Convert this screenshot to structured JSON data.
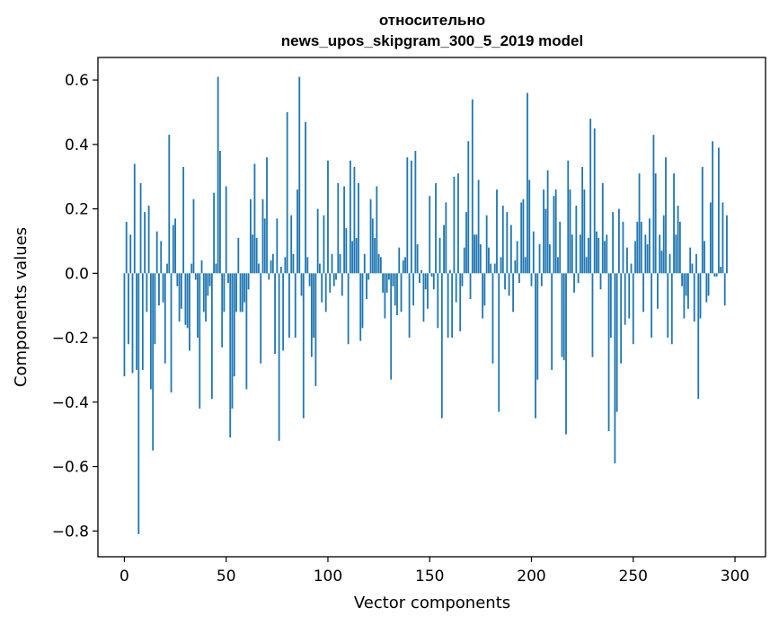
{
  "chart_data": {
    "type": "bar",
    "title": "относительно\nnews_upos_skipgram_300_5_2019 model",
    "title_lines": [
      "относительно",
      "news_upos_skipgram_300_5_2019 model"
    ],
    "xlabel": "Vector components",
    "ylabel": "Components values",
    "xlim": [
      -13,
      315
    ],
    "ylim": [
      -0.88,
      0.67
    ],
    "x_ticks": [
      0,
      50,
      100,
      150,
      200,
      250,
      300
    ],
    "x_tick_labels": [
      "0",
      "50",
      "100",
      "150",
      "200",
      "250",
      "300"
    ],
    "y_ticks": [
      -0.8,
      -0.6,
      -0.4,
      -0.2,
      0.0,
      0.2,
      0.4,
      0.6
    ],
    "y_tick_labels": [
      "−0.8",
      "−0.6",
      "−0.4",
      "−0.2",
      "0.0",
      "0.2",
      "0.4",
      "0.6"
    ],
    "grid": false,
    "bar_color": "#1f77b4",
    "values": [
      -0.32,
      0.16,
      -0.22,
      0.12,
      -0.31,
      0.34,
      -0.3,
      -0.81,
      0.28,
      -0.3,
      0.19,
      -0.12,
      0.21,
      -0.36,
      -0.55,
      -0.22,
      0.13,
      -0.1,
      0.1,
      -0.09,
      -0.28,
      0.03,
      0.43,
      -0.37,
      0.15,
      0.17,
      -0.04,
      -0.15,
      -0.11,
      0.33,
      -0.16,
      -0.17,
      -0.24,
      0.03,
      0.23,
      -0.02,
      -0.2,
      -0.42,
      0.04,
      -0.12,
      -0.15,
      -0.07,
      -0.04,
      -0.39,
      0.25,
      0.03,
      0.61,
      0.38,
      -0.23,
      -0.12,
      0.27,
      -0.03,
      -0.51,
      -0.42,
      -0.32,
      -0.12,
      0.11,
      -0.12,
      -0.12,
      -0.09,
      -0.36,
      -0.05,
      0.23,
      0.12,
      0.34,
      0.11,
      0.03,
      -0.28,
      0.23,
      0.17,
      0.36,
      -0.02,
      0.04,
      0.06,
      -0.25,
      0.17,
      -0.52,
      0.02,
      -0.24,
      0.05,
      0.5,
      -0.2,
      0.18,
      0.06,
      -0.2,
      0.26,
      0.61,
      -0.07,
      -0.45,
      0.47,
      0.05,
      -0.04,
      -0.26,
      -0.2,
      -0.35,
      0.2,
      0.03,
      -0.09,
      0.18,
      -0.12,
      0.35,
      -0.06,
      0.06,
      -0.04,
      -0.02,
      0.28,
      0.06,
      -0.07,
      0.27,
      0.14,
      -0.22,
      0.35,
      0.1,
      0.33,
      0.11,
      0.28,
      -0.21,
      -0.17,
      0.06,
      -0.08,
      -0.02,
      0.23,
      0.17,
      0.11,
      0.27,
      0.06,
      0.05,
      -0.06,
      -0.14,
      -0.06,
      -0.02,
      -0.33,
      -0.04,
      -0.1,
      -0.13,
      0.08,
      -0.12,
      0.04,
      0.05,
      0.36,
      -0.2,
      0.35,
      -0.1,
      0.38,
      0.09,
      -0.03,
      0.01,
      -0.15,
      -0.05,
      -0.11,
      0.24,
      -0.01,
      -0.05,
      0.28,
      -0.17,
      0.11,
      -0.45,
      0.15,
      0.22,
      -0.2,
      0.01,
      -0.2,
      0.3,
      -0.09,
      0.31,
      -0.18,
      -0.04,
      0.08,
      0.19,
      0.41,
      -0.08,
      0.54,
      0.12,
      0.12,
      0.29,
      0.09,
      -0.14,
      -0.1,
      0.18,
      0.08,
      0.03,
      -0.28,
      0.03,
      0.26,
      -0.43,
      0.05,
      0.21,
      -0.05,
      0.19,
      -0.07,
      0.15,
      -0.12,
      0.04,
      0.1,
      -0.03,
      0.22,
      0.23,
      0.05,
      0.56,
      0.29,
      -0.04,
      0.13,
      -0.45,
      -0.33,
      0.09,
      -0.04,
      0.26,
      0.2,
      0.32,
      0.09,
      -0.3,
      0.24,
      0.26,
      0.05,
      0.16,
      -0.26,
      -0.27,
      -0.5,
      0.35,
      0.26,
      0.12,
      -0.06,
      0.21,
      -0.03,
      0.12,
      0.33,
      0.26,
      0.05,
      0.11,
      0.48,
      -0.26,
      0.45,
      0.13,
      0.11,
      -0.05,
      0.28,
      0.1,
      0.12,
      -0.49,
      -0.2,
      0.19,
      -0.59,
      -0.43,
      0.2,
      -0.28,
      0.16,
      -0.16,
      0.08,
      -0.14,
      0.03,
      -0.22,
      0.1,
      0.16,
      0.31,
      0.16,
      -0.12,
      0.12,
      0.09,
      0.17,
      -0.2,
      0.43,
      0.31,
      -0.11,
      0.12,
      0.07,
      0.18,
      0.36,
      -0.2,
      0.06,
      -0.22,
      0.31,
      0.12,
      0.21,
      0.16,
      -0.04,
      -0.14,
      -0.07,
      -0.11,
      0.08,
      0.03,
      -0.15,
      0.06,
      -0.39,
      -0.14,
      0.33,
      0.1,
      -0.09,
      -0.07,
      0.22,
      0.41,
      -0.01,
      -0.01,
      0.39,
      0.02,
      0.22,
      -0.1,
      0.18
    ]
  }
}
